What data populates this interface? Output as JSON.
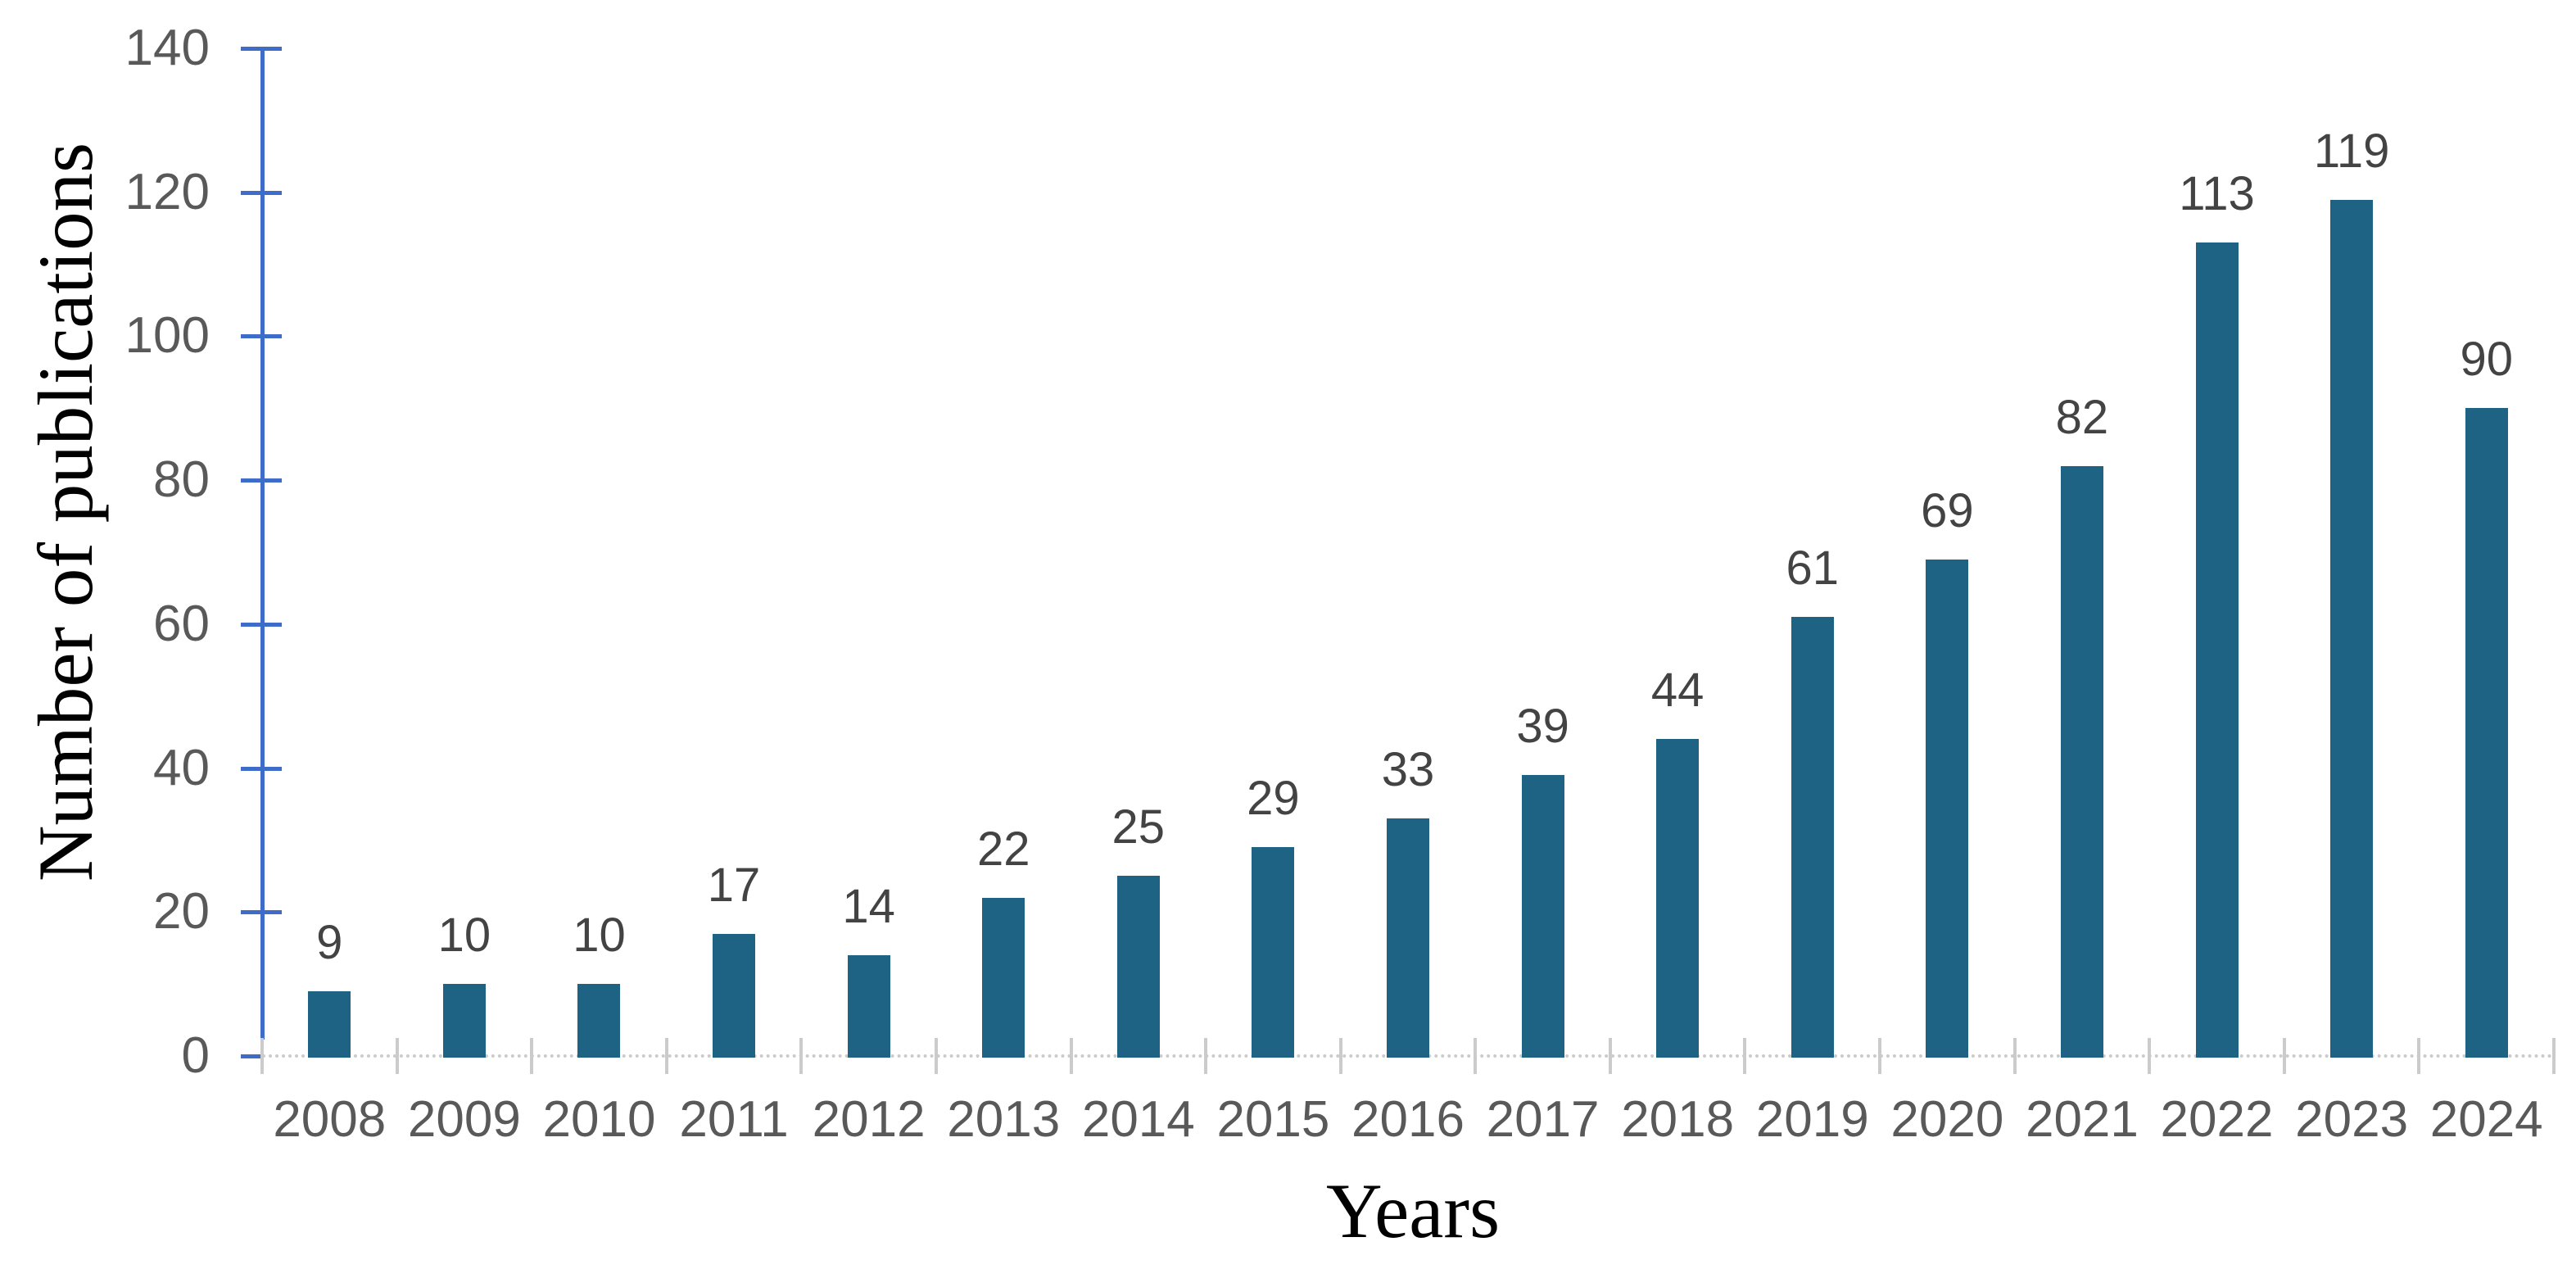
{
  "chart_data": {
    "type": "bar",
    "title": "",
    "xlabel": "Years",
    "ylabel": "Number of publications",
    "categories": [
      "2008",
      "2009",
      "2010",
      "2011",
      "2012",
      "2013",
      "2014",
      "2015",
      "2016",
      "2017",
      "2018",
      "2019",
      "2020",
      "2021",
      "2022",
      "2023",
      "2024"
    ],
    "values": [
      9,
      10,
      10,
      17,
      14,
      22,
      25,
      29,
      33,
      39,
      44,
      61,
      69,
      82,
      113,
      119,
      90
    ],
    "ylim": [
      0,
      140
    ],
    "yticks": [
      0,
      20,
      40,
      60,
      80,
      100,
      120,
      140
    ],
    "ytick_interval": 20,
    "grid": false,
    "legend": null,
    "data_labels_position": "outside-end",
    "colors": {
      "bar": "#1E6284",
      "y_axis": "#3E6CC8",
      "x_axis": "#CBCBCB",
      "tick_labels": "#595959",
      "data_labels": "#434343",
      "axis_titles": "#000000",
      "background": "#FFFFFF"
    }
  }
}
